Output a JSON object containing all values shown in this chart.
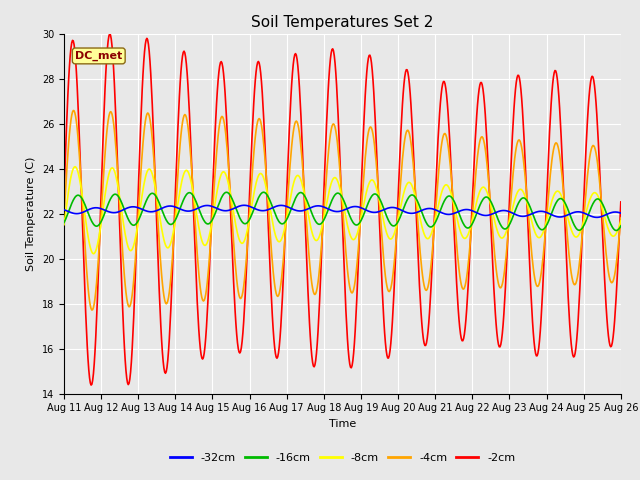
{
  "title": "Soil Temperatures Set 2",
  "xlabel": "Time",
  "ylabel": "Soil Temperature (C)",
  "ylim": [
    14,
    30
  ],
  "x_tick_labels": [
    "Aug 11",
    "Aug 12",
    "Aug 13",
    "Aug 14",
    "Aug 15",
    "Aug 16",
    "Aug 17",
    "Aug 18",
    "Aug 19",
    "Aug 20",
    "Aug 21",
    "Aug 22",
    "Aug 23",
    "Aug 24",
    "Aug 25",
    "Aug 26"
  ],
  "annotation_text": "DC_met",
  "annotation_color": "#8B0000",
  "annotation_bg": "#FFFF99",
  "colors": {
    "-32cm": "#0000FF",
    "-16cm": "#00BB00",
    "-8cm": "#FFFF00",
    "-4cm": "#FFA500",
    "-2cm": "#FF0000"
  },
  "plot_bg_color": "#E8E8E8",
  "fig_bg_color": "#E8E8E8",
  "title_fontsize": 11,
  "tick_fontsize": 7,
  "label_fontsize": 8
}
